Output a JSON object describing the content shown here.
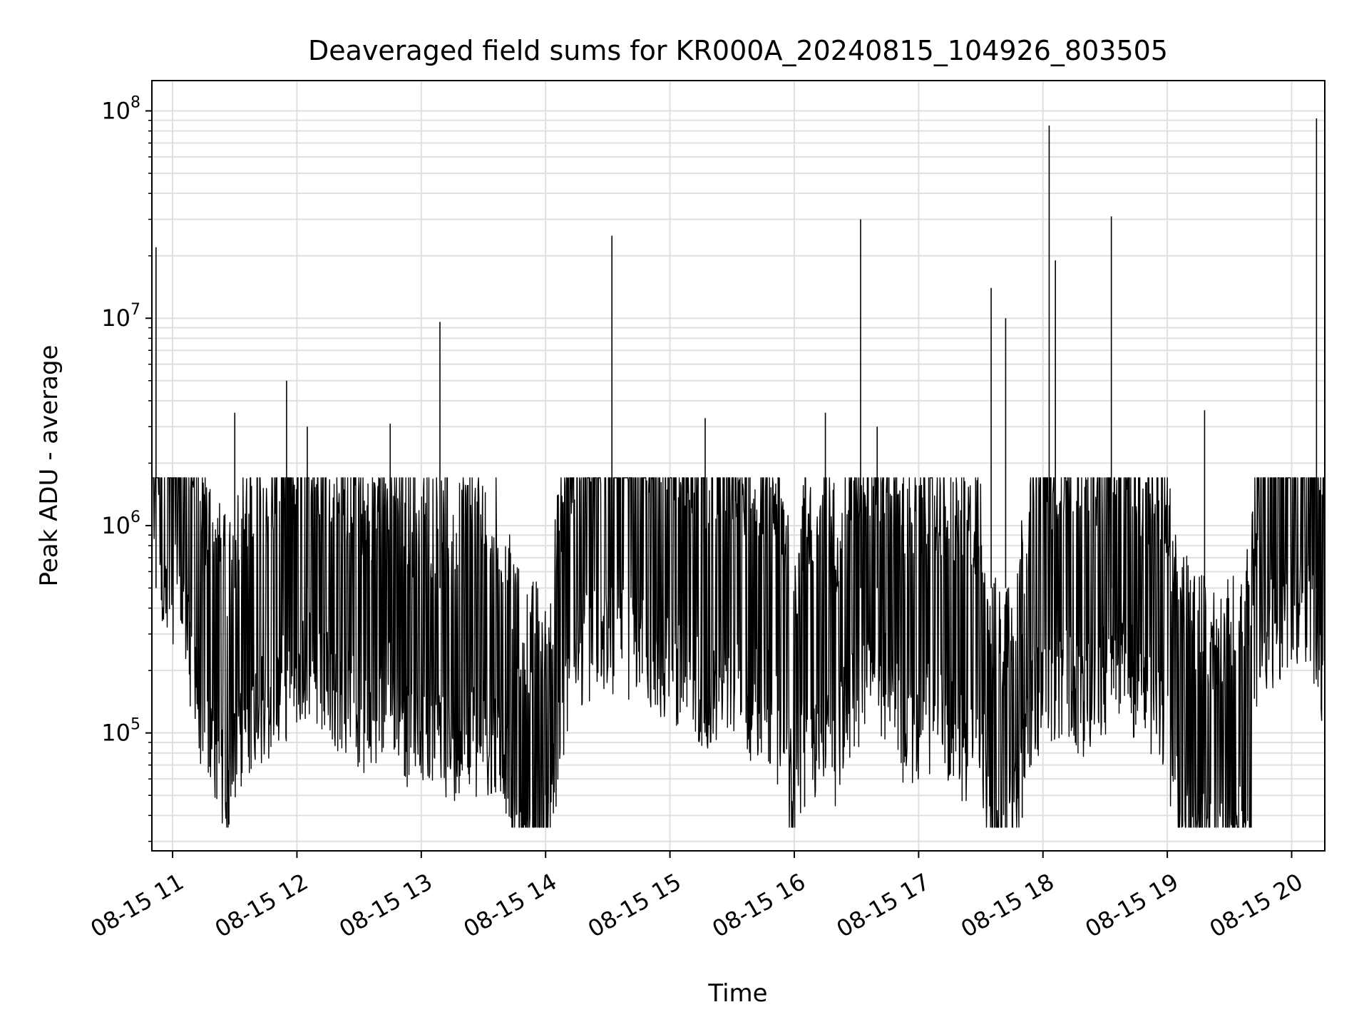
{
  "chart_data": {
    "type": "line",
    "title": "Deaveraged field sums for KR000A_20240815_104926_803505",
    "xlabel": "Time",
    "ylabel": "Peak ADU - average",
    "yscale": "log",
    "ylim": [
      27000,
      140000000
    ],
    "xlim": [
      "2024-08-15 10:50",
      "2024-08-15 20:16"
    ],
    "grid": true,
    "line_color": "#000000",
    "grid_color": "#e0e0e0",
    "x_ticks": [
      "08-15 11",
      "08-15 12",
      "08-15 13",
      "08-15 14",
      "08-15 15",
      "08-15 16",
      "08-15 17",
      "08-15 18",
      "08-15 19",
      "08-15 20"
    ],
    "y_ticks": [
      {
        "base": "10",
        "exp": "5",
        "value": 100000
      },
      {
        "base": "10",
        "exp": "6",
        "value": 1000000
      },
      {
        "base": "10",
        "exp": "7",
        "value": 10000000
      },
      {
        "base": "10",
        "exp": "8",
        "value": 100000000
      }
    ],
    "series": [
      {
        "x": [
          "2024-08-15 10:50",
          "2024-08-15 10:52",
          "2024-08-15 10:55",
          "2024-08-15 11:00",
          "2024-08-15 11:05",
          "2024-08-15 11:10",
          "2024-08-15 11:15",
          "2024-08-15 11:20",
          "2024-08-15 11:25",
          "2024-08-15 11:30",
          "2024-08-15 11:35",
          "2024-08-15 11:40",
          "2024-08-15 11:45",
          "2024-08-15 11:50",
          "2024-08-15 11:55",
          "2024-08-15 12:00",
          "2024-08-15 12:05",
          "2024-08-15 12:10",
          "2024-08-15 12:15",
          "2024-08-15 12:20",
          "2024-08-15 12:25",
          "2024-08-15 12:30",
          "2024-08-15 12:35",
          "2024-08-15 12:40",
          "2024-08-15 12:45",
          "2024-08-15 12:50",
          "2024-08-15 12:55",
          "2024-08-15 13:00",
          "2024-08-15 13:05",
          "2024-08-15 13:10",
          "2024-08-15 13:15",
          "2024-08-15 13:20",
          "2024-08-15 13:25",
          "2024-08-15 13:30",
          "2024-08-15 13:35",
          "2024-08-15 13:40",
          "2024-08-15 13:45",
          "2024-08-15 13:50",
          "2024-08-15 13:55",
          "2024-08-15 14:00",
          "2024-08-15 14:05",
          "2024-08-15 14:10",
          "2024-08-15 14:15",
          "2024-08-15 14:20",
          "2024-08-15 14:25",
          "2024-08-15 14:30",
          "2024-08-15 14:35",
          "2024-08-15 14:40",
          "2024-08-15 14:45",
          "2024-08-15 14:50",
          "2024-08-15 14:55",
          "2024-08-15 15:00",
          "2024-08-15 15:05",
          "2024-08-15 15:10",
          "2024-08-15 15:15",
          "2024-08-15 15:20",
          "2024-08-15 15:25",
          "2024-08-15 15:30",
          "2024-08-15 15:35",
          "2024-08-15 15:40",
          "2024-08-15 15:45",
          "2024-08-15 15:50",
          "2024-08-15 15:55",
          "2024-08-15 16:00",
          "2024-08-15 16:05",
          "2024-08-15 16:10",
          "2024-08-15 16:15",
          "2024-08-15 16:20",
          "2024-08-15 16:25",
          "2024-08-15 16:30",
          "2024-08-15 16:35",
          "2024-08-15 16:40",
          "2024-08-15 16:45",
          "2024-08-15 16:50",
          "2024-08-15 16:55",
          "2024-08-15 17:00",
          "2024-08-15 17:05",
          "2024-08-15 17:10",
          "2024-08-15 17:15",
          "2024-08-15 17:20",
          "2024-08-15 17:25",
          "2024-08-15 17:30",
          "2024-08-15 17:35",
          "2024-08-15 17:40",
          "2024-08-15 17:45",
          "2024-08-15 17:50",
          "2024-08-15 17:55",
          "2024-08-15 18:00",
          "2024-08-15 18:05",
          "2024-08-15 18:10",
          "2024-08-15 18:15",
          "2024-08-15 18:20",
          "2024-08-15 18:25",
          "2024-08-15 18:30",
          "2024-08-15 18:35",
          "2024-08-15 18:40",
          "2024-08-15 18:45",
          "2024-08-15 18:50",
          "2024-08-15 18:55",
          "2024-08-15 19:00",
          "2024-08-15 19:05",
          "2024-08-15 19:10",
          "2024-08-15 19:15",
          "2024-08-15 19:20",
          "2024-08-15 19:25",
          "2024-08-15 19:30",
          "2024-08-15 19:35",
          "2024-08-15 19:40",
          "2024-08-15 19:45",
          "2024-08-15 19:50",
          "2024-08-15 19:55",
          "2024-08-15 20:00",
          "2024-08-15 20:05",
          "2024-08-15 20:10",
          "2024-08-15 20:15"
        ],
        "y": [
          500000,
          22000000,
          1500000,
          1700000,
          1400000,
          600000,
          380000,
          250000,
          180000,
          250000,
          350000,
          450000,
          400000,
          500000,
          550000,
          650000,
          700000,
          600000,
          550000,
          500000,
          450000,
          400000,
          350000,
          450000,
          550000,
          400000,
          300000,
          350000,
          300000,
          320000,
          280000,
          350000,
          300000,
          320000,
          300000,
          280000,
          120000,
          80000,
          90000,
          70000,
          200000,
          500000,
          800000,
          900000,
          850000,
          950000,
          900000,
          850000,
          900000,
          800000,
          750000,
          700000,
          650000,
          600000,
          550000,
          500000,
          600000,
          550000,
          500000,
          450000,
          500000,
          400000,
          300000,
          150000,
          350000,
          300000,
          400000,
          250000,
          450000,
          500000,
          600000,
          550000,
          600000,
          400000,
          300000,
          350000,
          400000,
          380000,
          350000,
          300000,
          280000,
          350000,
          100000,
          80000,
          120000,
          200000,
          500000,
          450000,
          550000,
          600000,
          500000,
          450000,
          550000,
          600000,
          700000,
          800000,
          500000,
          450000,
          400000,
          300000,
          150000,
          120000,
          100000,
          90000,
          80000,
          90000,
          100000,
          150000,
          700000,
          1000000,
          1100000,
          1200000,
          1300000,
          1100000,
          600000
        ],
        "spikes": [
          {
            "x": "2024-08-15 10:52",
            "y": 22000000
          },
          {
            "x": "2024-08-15 11:30",
            "y": 3500000
          },
          {
            "x": "2024-08-15 11:55",
            "y": 5000000
          },
          {
            "x": "2024-08-15 12:05",
            "y": 3000000
          },
          {
            "x": "2024-08-15 12:45",
            "y": 3100000
          },
          {
            "x": "2024-08-15 13:09",
            "y": 9600000
          },
          {
            "x": "2024-08-15 14:32",
            "y": 25000000
          },
          {
            "x": "2024-08-15 15:17",
            "y": 3300000
          },
          {
            "x": "2024-08-15 16:15",
            "y": 3500000
          },
          {
            "x": "2024-08-15 16:32",
            "y": 30000000
          },
          {
            "x": "2024-08-15 16:40",
            "y": 3000000
          },
          {
            "x": "2024-08-15 17:35",
            "y": 14000000
          },
          {
            "x": "2024-08-15 17:42",
            "y": 10000000
          },
          {
            "x": "2024-08-15 18:03",
            "y": 85000000
          },
          {
            "x": "2024-08-15 18:06",
            "y": 19000000
          },
          {
            "x": "2024-08-15 18:33",
            "y": 31000000
          },
          {
            "x": "2024-08-15 19:18",
            "y": 3600000
          },
          {
            "x": "2024-08-15 20:12",
            "y": 92000000
          }
        ],
        "dips": [
          {
            "x": "2024-08-15 14:00",
            "y": 50000
          },
          {
            "x": "2024-08-15 16:05",
            "y": 44000
          },
          {
            "x": "2024-08-15 17:50",
            "y": 39000
          },
          {
            "x": "2024-08-15 19:30",
            "y": 58000
          }
        ]
      }
    ]
  }
}
